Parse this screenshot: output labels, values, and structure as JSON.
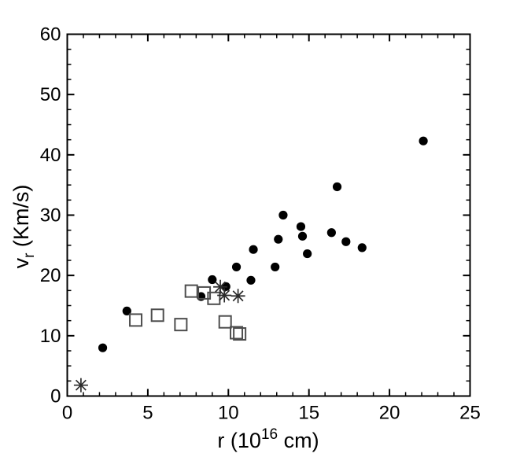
{
  "figure": {
    "background": "#ffffff",
    "axis_color": "#000000",
    "tick_label_color": "#000000"
  },
  "chart_data": {
    "type": "scatter",
    "title": "",
    "xlabel": {
      "pre": "r (10",
      "sup": "16",
      "post": " cm)"
    },
    "ylabel": {
      "pre": "v",
      "sub": "r",
      "post": " (Km/s)"
    },
    "xlim": [
      0,
      25
    ],
    "ylim": [
      0,
      60
    ],
    "x_major_ticks": [
      0,
      5,
      10,
      15,
      20,
      25
    ],
    "x_minor_step": 1,
    "y_major_ticks": [
      0,
      10,
      20,
      30,
      40,
      50,
      60
    ],
    "y_minor_step": 2.5,
    "grid": false,
    "legend": null,
    "series": [
      {
        "name": "filled-circles",
        "marker": "circle",
        "color": "#000000",
        "points": [
          [
            2.2,
            8.0
          ],
          [
            3.7,
            14.1
          ],
          [
            8.3,
            16.5
          ],
          [
            9.0,
            19.3
          ],
          [
            9.85,
            18.15
          ],
          [
            10.5,
            21.4
          ],
          [
            11.4,
            19.2
          ],
          [
            11.55,
            24.3
          ],
          [
            12.9,
            21.4
          ],
          [
            13.1,
            26.0
          ],
          [
            13.4,
            30.0
          ],
          [
            14.5,
            28.1
          ],
          [
            14.6,
            26.5
          ],
          [
            14.9,
            23.6
          ],
          [
            16.4,
            27.1
          ],
          [
            16.75,
            34.7
          ],
          [
            17.3,
            25.6
          ],
          [
            18.3,
            24.6
          ],
          [
            22.1,
            42.3
          ]
        ]
      },
      {
        "name": "open-squares",
        "marker": "square",
        "color": "#4d4d4d",
        "points": [
          [
            4.25,
            12.6
          ],
          [
            5.6,
            13.4
          ],
          [
            7.05,
            11.85
          ],
          [
            7.7,
            17.4
          ],
          [
            8.5,
            17.1
          ],
          [
            9.1,
            16.2
          ],
          [
            9.8,
            12.3
          ],
          [
            10.5,
            10.5
          ],
          [
            10.7,
            10.3
          ]
        ]
      },
      {
        "name": "asterisks",
        "marker": "asterisk",
        "color": "#2b2b2b",
        "points": [
          [
            0.85,
            1.8
          ],
          [
            9.5,
            18.1
          ],
          [
            9.75,
            16.7
          ],
          [
            10.6,
            16.6
          ]
        ]
      }
    ]
  }
}
